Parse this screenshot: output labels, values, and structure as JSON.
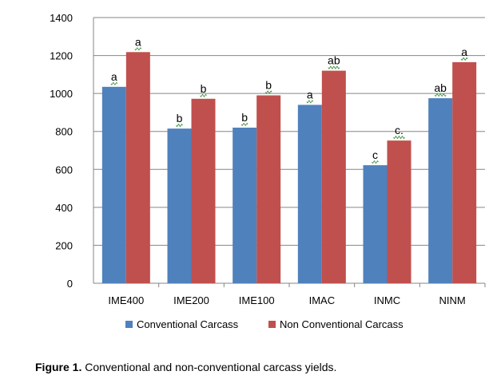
{
  "chart_data": {
    "type": "bar",
    "categories": [
      "IME400",
      "IME200",
      "IME100",
      "IMAC",
      "INMC",
      "NINM"
    ],
    "series": [
      {
        "name": "Conventional Carcass",
        "color": "#4f81bd",
        "values": [
          1035,
          815,
          820,
          940,
          622,
          975
        ],
        "labels": [
          "a",
          "b",
          "b",
          "a",
          "c",
          "ab"
        ]
      },
      {
        "name": "Non Conventional Carcass",
        "color": "#c0504d",
        "values": [
          1218,
          972,
          990,
          1120,
          752,
          1165
        ],
        "labels": [
          "a",
          "b",
          "b",
          "ab",
          "c.",
          "a"
        ]
      }
    ],
    "ylim": [
      0,
      1400
    ],
    "yticks": [
      0,
      200,
      400,
      600,
      800,
      1000,
      1200,
      1400
    ],
    "grid": true,
    "legend": "bottom",
    "title": "",
    "xlabel": "",
    "ylabel": ""
  },
  "caption": {
    "label": "Figure 1.",
    "text": "Conventional and non-conventional carcass yields."
  }
}
